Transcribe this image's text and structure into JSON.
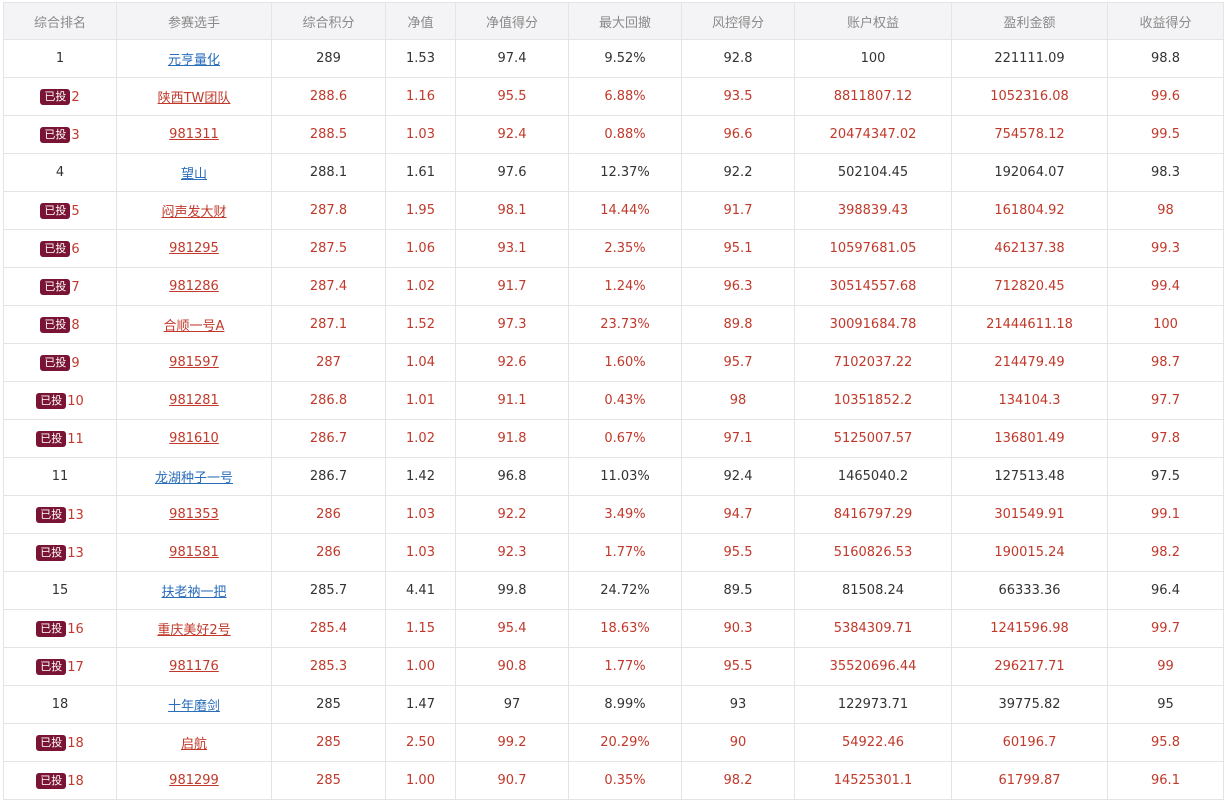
{
  "colors": {
    "header_bg": "#f4f4f6",
    "header_text": "#8a8a8a",
    "invested_text": "#c0392b",
    "normal_text": "#333333",
    "link_blue": "#2a6ebb",
    "badge_bg": "#7a1434"
  },
  "badge_label": "已投",
  "headers": [
    "综合排名",
    "参赛选手",
    "综合积分",
    "净值",
    "净值得分",
    "最大回撤",
    "风控得分",
    "账户权益",
    "盈利金额",
    "收益得分"
  ],
  "rows": [
    {
      "invested": false,
      "cells": [
        "1",
        "元亨量化",
        "289",
        "1.53",
        "97.4",
        "9.52%",
        "92.8",
        "100",
        "221111.09",
        "98.8"
      ]
    },
    {
      "invested": true,
      "cells": [
        "2",
        "陕西TW团队",
        "288.6",
        "1.16",
        "95.5",
        "6.88%",
        "93.5",
        "8811807.12",
        "1052316.08",
        "99.6"
      ]
    },
    {
      "invested": true,
      "cells": [
        "3",
        "981311",
        "288.5",
        "1.03",
        "92.4",
        "0.88%",
        "96.6",
        "20474347.02",
        "754578.12",
        "99.5"
      ]
    },
    {
      "invested": false,
      "cells": [
        "4",
        "望山",
        "288.1",
        "1.61",
        "97.6",
        "12.37%",
        "92.2",
        "502104.45",
        "192064.07",
        "98.3"
      ]
    },
    {
      "invested": true,
      "cells": [
        "5",
        "闷声发大财",
        "287.8",
        "1.95",
        "98.1",
        "14.44%",
        "91.7",
        "398839.43",
        "161804.92",
        "98"
      ]
    },
    {
      "invested": true,
      "cells": [
        "6",
        "981295",
        "287.5",
        "1.06",
        "93.1",
        "2.35%",
        "95.1",
        "10597681.05",
        "462137.38",
        "99.3"
      ]
    },
    {
      "invested": true,
      "cells": [
        "7",
        "981286",
        "287.4",
        "1.02",
        "91.7",
        "1.24%",
        "96.3",
        "30514557.68",
        "712820.45",
        "99.4"
      ]
    },
    {
      "invested": true,
      "cells": [
        "8",
        "合顺一号A",
        "287.1",
        "1.52",
        "97.3",
        "23.73%",
        "89.8",
        "30091684.78",
        "21444611.18",
        "100"
      ]
    },
    {
      "invested": true,
      "cells": [
        "9",
        "981597",
        "287",
        "1.04",
        "92.6",
        "1.60%",
        "95.7",
        "7102037.22",
        "214479.49",
        "98.7"
      ]
    },
    {
      "invested": true,
      "cells": [
        "10",
        "981281",
        "286.8",
        "1.01",
        "91.1",
        "0.43%",
        "98",
        "10351852.2",
        "134104.3",
        "97.7"
      ]
    },
    {
      "invested": true,
      "cells": [
        "11",
        "981610",
        "286.7",
        "1.02",
        "91.8",
        "0.67%",
        "97.1",
        "5125007.57",
        "136801.49",
        "97.8"
      ]
    },
    {
      "invested": false,
      "cells": [
        "11",
        "龙湖种子一号",
        "286.7",
        "1.42",
        "96.8",
        "11.03%",
        "92.4",
        "1465040.2",
        "127513.48",
        "97.5"
      ]
    },
    {
      "invested": true,
      "cells": [
        "13",
        "981353",
        "286",
        "1.03",
        "92.2",
        "3.49%",
        "94.7",
        "8416797.29",
        "301549.91",
        "99.1"
      ]
    },
    {
      "invested": true,
      "cells": [
        "13",
        "981581",
        "286",
        "1.03",
        "92.3",
        "1.77%",
        "95.5",
        "5160826.53",
        "190015.24",
        "98.2"
      ]
    },
    {
      "invested": false,
      "cells": [
        "15",
        "扶老衲一把",
        "285.7",
        "4.41",
        "99.8",
        "24.72%",
        "89.5",
        "81508.24",
        "66333.36",
        "96.4"
      ]
    },
    {
      "invested": true,
      "cells": [
        "16",
        "重庆美好2号",
        "285.4",
        "1.15",
        "95.4",
        "18.63%",
        "90.3",
        "5384309.71",
        "1241596.98",
        "99.7"
      ]
    },
    {
      "invested": true,
      "cells": [
        "17",
        "981176",
        "285.3",
        "1.00",
        "90.8",
        "1.77%",
        "95.5",
        "35520696.44",
        "296217.71",
        "99"
      ]
    },
    {
      "invested": false,
      "cells": [
        "18",
        "十年磨剑",
        "285",
        "1.47",
        "97",
        "8.99%",
        "93",
        "122973.71",
        "39775.82",
        "95"
      ]
    },
    {
      "invested": true,
      "cells": [
        "18",
        "启航",
        "285",
        "2.50",
        "99.2",
        "20.29%",
        "90",
        "54922.46",
        "60196.7",
        "95.8"
      ]
    },
    {
      "invested": true,
      "cells": [
        "18",
        "981299",
        "285",
        "1.00",
        "90.7",
        "0.35%",
        "98.2",
        "14525301.1",
        "61799.87",
        "96.1"
      ]
    }
  ]
}
